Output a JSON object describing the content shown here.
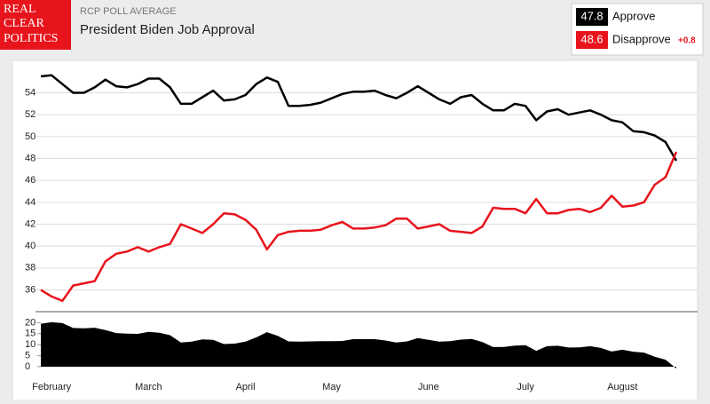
{
  "header": {
    "logo": [
      "REAL",
      "CLEAR",
      "POLITICS"
    ],
    "kicker": "RCP POLL AVERAGE",
    "title": "President Biden Job Approval",
    "lead_label": "+0.8"
  },
  "chart_data": [
    {
      "type": "line",
      "categories": [
        null,
        "February",
        null,
        null,
        null,
        null,
        null,
        null,
        null,
        null,
        "March",
        null,
        null,
        null,
        null,
        null,
        null,
        null,
        null,
        "April",
        null,
        null,
        null,
        null,
        null,
        null,
        null,
        "May",
        null,
        null,
        null,
        null,
        null,
        null,
        null,
        null,
        "June",
        null,
        null,
        null,
        null,
        null,
        null,
        null,
        null,
        "July",
        null,
        null,
        null,
        null,
        null,
        null,
        null,
        null,
        "August",
        null,
        null,
        null,
        null,
        null
      ],
      "series": [
        {
          "name": "Approve",
          "color": "#000000",
          "values": [
            55.5,
            55.6,
            54.8,
            54.0,
            54.0,
            54.5,
            55.2,
            54.6,
            54.5,
            54.8,
            55.3,
            55.3,
            54.5,
            53.0,
            53.0,
            53.6,
            54.2,
            53.3,
            53.4,
            53.8,
            54.8,
            55.4,
            55.0,
            52.8,
            52.8,
            52.9,
            53.1,
            53.5,
            53.9,
            54.1,
            54.1,
            54.2,
            53.8,
            53.5,
            54.0,
            54.6,
            54.0,
            53.4,
            53.0,
            53.6,
            53.8,
            53.0,
            52.4,
            52.4,
            53.0,
            52.8,
            51.5,
            52.3,
            52.5,
            52.0,
            52.2,
            52.4,
            52.0,
            51.5,
            51.3,
            50.5,
            50.4,
            50.1,
            49.5,
            47.8
          ]
        },
        {
          "name": "Disapprove",
          "color": "#e8141c",
          "values": [
            36.0,
            35.4,
            35.0,
            36.4,
            36.6,
            36.8,
            38.6,
            39.3,
            39.5,
            39.9,
            39.5,
            39.9,
            40.2,
            42.0,
            41.6,
            41.2,
            42.0,
            43.0,
            42.9,
            42.4,
            41.5,
            39.7,
            41.0,
            41.3,
            41.4,
            41.4,
            41.5,
            41.9,
            42.2,
            41.6,
            41.6,
            41.7,
            41.9,
            42.5,
            42.5,
            41.6,
            41.8,
            42.0,
            41.4,
            41.3,
            41.2,
            41.8,
            43.5,
            43.4,
            43.4,
            43.0,
            44.3,
            43.0,
            43.0,
            43.3,
            43.4,
            43.1,
            43.5,
            44.6,
            43.6,
            43.7,
            44.0,
            45.6,
            46.3,
            48.6
          ]
        }
      ],
      "ylim": [
        34.5,
        56.8
      ],
      "yticks": [
        36,
        38,
        40,
        42,
        44,
        46,
        48,
        50,
        52,
        54
      ],
      "grid": true
    },
    {
      "type": "area",
      "color": "#000000",
      "values": [
        19.5,
        20.2,
        19.8,
        17.6,
        17.4,
        17.7,
        16.6,
        15.3,
        15.0,
        14.9,
        15.8,
        15.4,
        14.3,
        11.0,
        11.4,
        12.4,
        12.2,
        10.3,
        10.5,
        11.4,
        13.3,
        15.7,
        14.0,
        11.5,
        11.4,
        11.5,
        11.6,
        11.6,
        11.7,
        12.5,
        12.5,
        12.5,
        11.9,
        11.0,
        11.5,
        13.0,
        12.2,
        11.4,
        11.6,
        12.3,
        12.6,
        11.2,
        8.9,
        9.0,
        9.6,
        9.8,
        7.2,
        9.3,
        9.5,
        8.7,
        8.8,
        9.3,
        8.5,
        6.9,
        7.7,
        6.8,
        6.4,
        4.5,
        3.2,
        -0.8
      ],
      "ylim": [
        0,
        25
      ],
      "yticks": [
        0,
        5,
        10,
        15,
        20
      ]
    }
  ]
}
